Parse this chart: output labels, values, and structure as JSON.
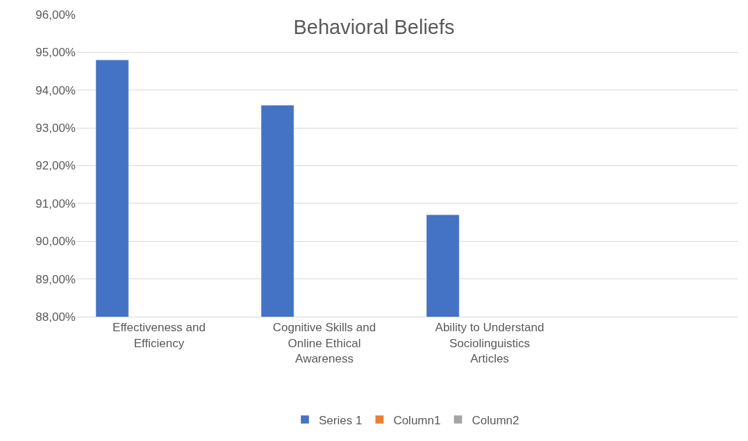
{
  "chart_data": {
    "type": "bar",
    "title": "Behavioral Beliefs",
    "categories": [
      "Effectiveness and Efficiency",
      "Cognitive Skills and Online Ethical Awareness",
      "Ability to Understand Sociolinguistics Articles",
      null
    ],
    "series": [
      {
        "name": "Series 1",
        "color": "#4472c4",
        "values": [
          94.8,
          93.6,
          90.7,
          null
        ]
      },
      {
        "name": "Column1",
        "color": "#ed7d31",
        "values": [
          null,
          null,
          null,
          null
        ]
      },
      {
        "name": "Column2",
        "color": "#a5a5a5",
        "values": [
          null,
          null,
          null,
          null
        ]
      }
    ],
    "ylim": [
      88,
      96
    ],
    "yticks": [
      {
        "value": 88,
        "label": "88,00%"
      },
      {
        "value": 89,
        "label": "89,00%"
      },
      {
        "value": 90,
        "label": "90,00%"
      },
      {
        "value": 91,
        "label": "91,00%"
      },
      {
        "value": 92,
        "label": "92,00%"
      },
      {
        "value": 93,
        "label": "93,00%"
      },
      {
        "value": 94,
        "label": "94,00%"
      },
      {
        "value": 95,
        "label": "95,00%"
      },
      {
        "value": 96,
        "label": "96,00%"
      }
    ],
    "grid": "y",
    "legend": "bottom"
  }
}
